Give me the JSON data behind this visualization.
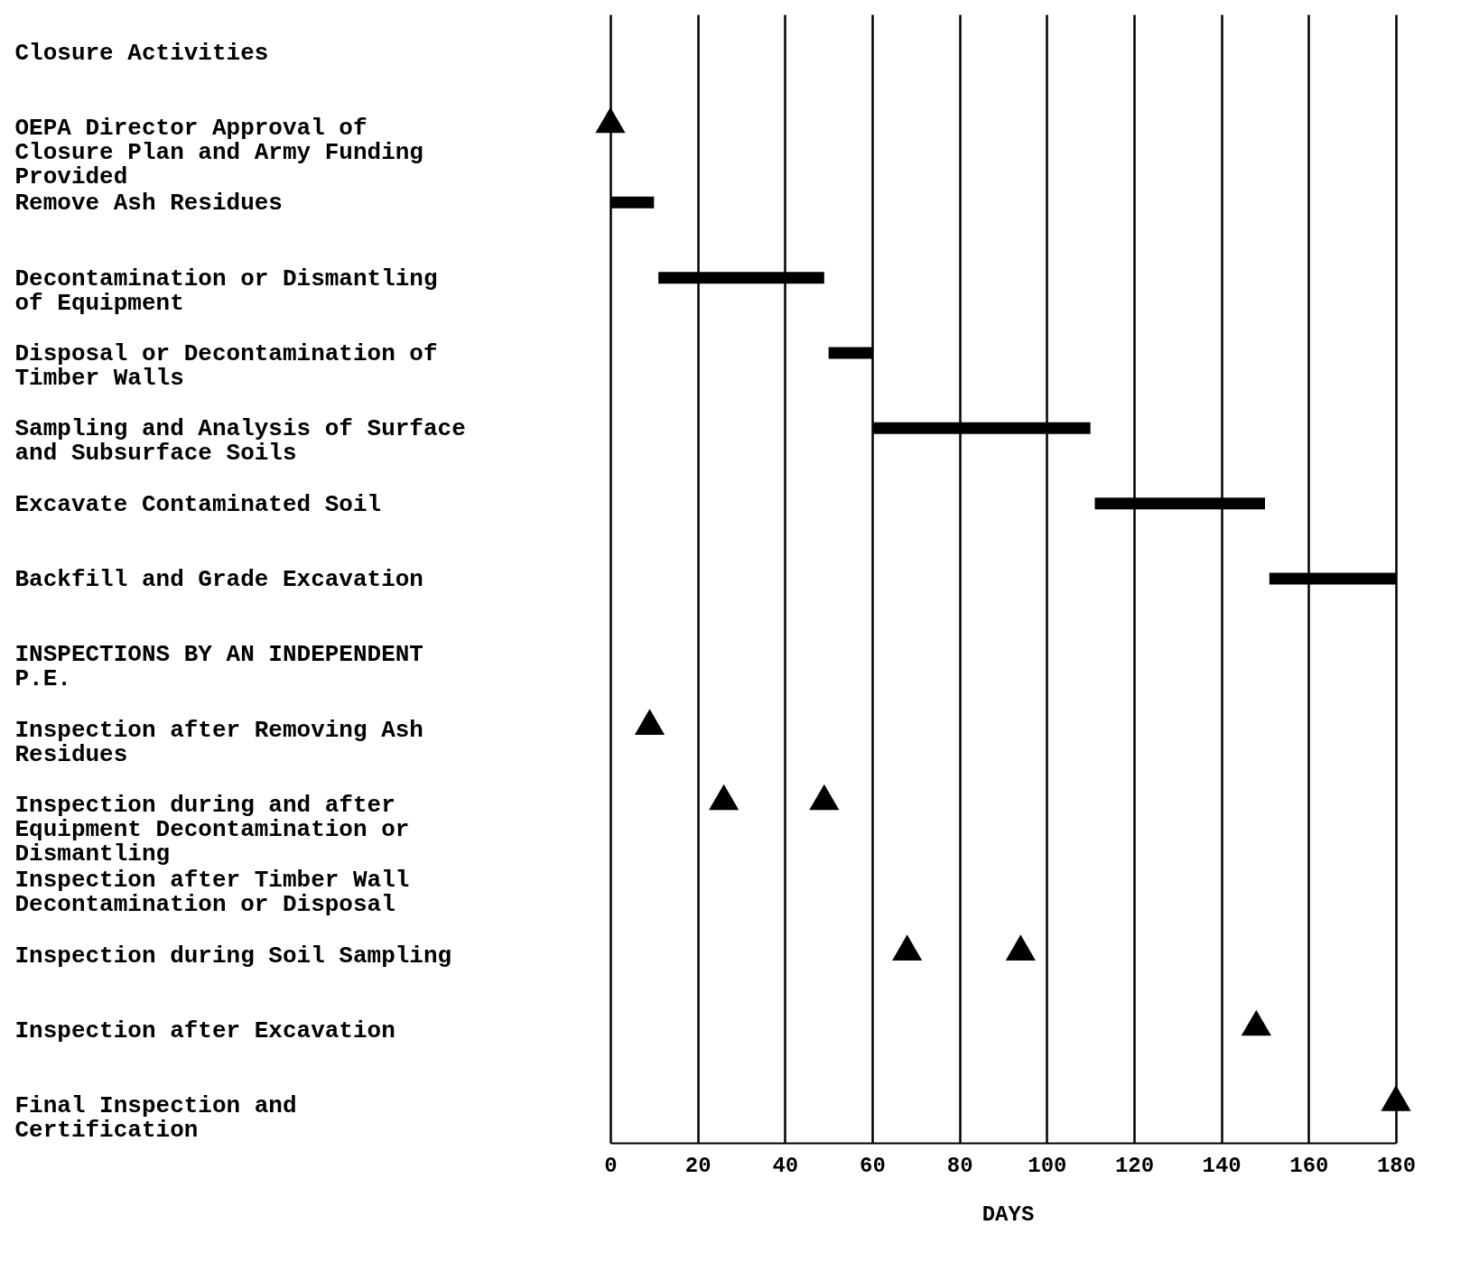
{
  "chart_data": {
    "type": "bar",
    "orientation": "horizontal",
    "xlabel": "DAYS",
    "categories": [
      "Closure Activities",
      "OEPA Director Approval of Closure Plan and Army Funding Provided",
      "Remove Ash Residues",
      "Decontamination or Dismantling of Equipment",
      "Disposal or Decontamination of Timber Walls",
      "Sampling and Analysis of Surface and Subsurface Soils",
      "Excavate Contaminated Soil",
      "Backfill and Grade Excavation",
      "INSPECTIONS BY AN INDEPENDENT P.E.",
      "Inspection after Removing Ash Residues",
      "Inspection during and after Equipment Decontamination or Dismantling",
      "Inspection after Timber Wall Decontamination or Disposal",
      "Inspection during Soil Sampling",
      "Inspection after Excavation",
      "Final Inspection and Certification"
    ],
    "series": [
      {
        "color": "#000000",
        "base": [
          null,
          null,
          0,
          11,
          50,
          60,
          111,
          151,
          null,
          null,
          null,
          null,
          null,
          null,
          null
        ],
        "values": [
          null,
          null,
          10,
          38,
          10,
          50,
          39,
          29,
          null,
          null,
          null,
          null,
          null,
          null,
          null
        ]
      },
      {
        "type": "scatter",
        "marker": "triangle",
        "color": "#000000",
        "x": [
          "OEPA Director Approval of Closure Plan and Army Funding Provided",
          "Inspection after Removing Ash Residues",
          "Inspection during and after Equipment Decontamination or Dismantling",
          "Inspection during and after Equipment Decontamination or Dismantling",
          "Inspection during Soil Sampling",
          "Inspection during Soil Sampling",
          "Inspection after Excavation",
          "Final Inspection and Certification"
        ],
        "values": [
          0,
          9,
          26,
          49,
          68,
          94,
          148,
          180
        ]
      }
    ],
    "xlim": [
      0,
      180
    ],
    "xticks": [
      0,
      20,
      40,
      60,
      80,
      100,
      120,
      140,
      160,
      180
    ],
    "grid": "x"
  }
}
